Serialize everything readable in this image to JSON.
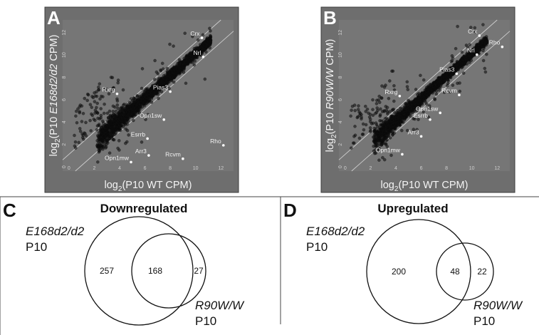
{
  "panels": {
    "A": {
      "letter": "A"
    },
    "B": {
      "letter": "B"
    },
    "C": {
      "letter": "C"
    },
    "D": {
      "letter": "D"
    }
  },
  "chart_data": [
    {
      "panel": "A",
      "type": "scatter",
      "xlabel_base": "log",
      "xlabel_sub": "2",
      "xlabel_rest": "(P10 WT CPM)",
      "ylabel_base": "log",
      "ylabel_sub": "2",
      "ylabel_open": "(P10 ",
      "ylabel_italic": "E168d2/d2",
      "ylabel_close": " CPM)",
      "xlim": [
        -0.5,
        13
      ],
      "ylim": [
        -0.5,
        13
      ],
      "xticks": [
        "0",
        "2",
        "4",
        "6",
        "8",
        "10",
        "12"
      ],
      "yticks": [
        "0",
        "2",
        "4",
        "6",
        "8",
        "10",
        "12"
      ],
      "reference_lines": "y = x ± 1 (diagonal fold-change guides)",
      "highlighted_genes": [
        {
          "name": "Crx",
          "x": 10.5,
          "y": 11.4
        },
        {
          "name": "Nrl",
          "x": 10.6,
          "y": 9.7
        },
        {
          "name": "Rxrg",
          "x": 3.8,
          "y": 6.4
        },
        {
          "name": "Pias3",
          "x": 8.0,
          "y": 6.6
        },
        {
          "name": "Opn1sw",
          "x": 7.5,
          "y": 4.1
        },
        {
          "name": "Esrrb",
          "x": 6.2,
          "y": 2.4
        },
        {
          "name": "Arr3",
          "x": 6.3,
          "y": 0.9
        },
        {
          "name": "Opn1mw",
          "x": 4.9,
          "y": 0.3
        },
        {
          "name": "Rcvm",
          "x": 9.0,
          "y": 0.6
        },
        {
          "name": "Rho",
          "x": 12.2,
          "y": 1.8
        }
      ]
    },
    {
      "panel": "B",
      "type": "scatter",
      "xlabel_base": "log",
      "xlabel_sub": "2",
      "xlabel_rest": "(P10 WT CPM)",
      "ylabel_base": "log",
      "ylabel_sub": "2",
      "ylabel_open": "(P10 ",
      "ylabel_italic": "R90W/W",
      "ylabel_close": " CPM)",
      "xlim": [
        -0.5,
        13
      ],
      "ylim": [
        -0.5,
        13
      ],
      "xticks": [
        "0",
        "2",
        "4",
        "6",
        "8",
        "10",
        "12"
      ],
      "yticks": [
        "0",
        "2",
        "4",
        "6",
        "8",
        "10",
        "12"
      ],
      "reference_lines": "y = x ± 1 (diagonal fold-change guides)",
      "highlighted_genes": [
        {
          "name": "Crx",
          "x": 10.6,
          "y": 11.6
        },
        {
          "name": "Nrl",
          "x": 10.4,
          "y": 9.9
        },
        {
          "name": "Rho",
          "x": 12.4,
          "y": 10.6
        },
        {
          "name": "Pias3",
          "x": 8.8,
          "y": 8.2
        },
        {
          "name": "Rxrg",
          "x": 4.3,
          "y": 6.2
        },
        {
          "name": "Rcvm",
          "x": 9.0,
          "y": 6.3
        },
        {
          "name": "Opn1sw",
          "x": 7.5,
          "y": 4.7
        },
        {
          "name": "Esrrb",
          "x": 6.7,
          "y": 4.1
        },
        {
          "name": "Arr3",
          "x": 6.0,
          "y": 2.6
        },
        {
          "name": "Opn1mw",
          "x": 4.5,
          "y": 1.0
        }
      ]
    },
    {
      "panel": "C",
      "type": "venn",
      "title": "Downregulated",
      "sets": [
        {
          "name": "E168d2/d2",
          "sub": "P10"
        },
        {
          "name": "R90W/W",
          "sub": "P10"
        }
      ],
      "counts": {
        "only_left": "257",
        "overlap": "168",
        "only_right": "27"
      }
    },
    {
      "panel": "D",
      "type": "venn",
      "title": "Upregulated",
      "sets": [
        {
          "name": "E168d2/d2",
          "sub": "P10"
        },
        {
          "name": "R90W/W",
          "sub": "P10"
        }
      ],
      "counts": {
        "only_left": "200",
        "overlap": "48",
        "only_right": "22"
      }
    }
  ]
}
